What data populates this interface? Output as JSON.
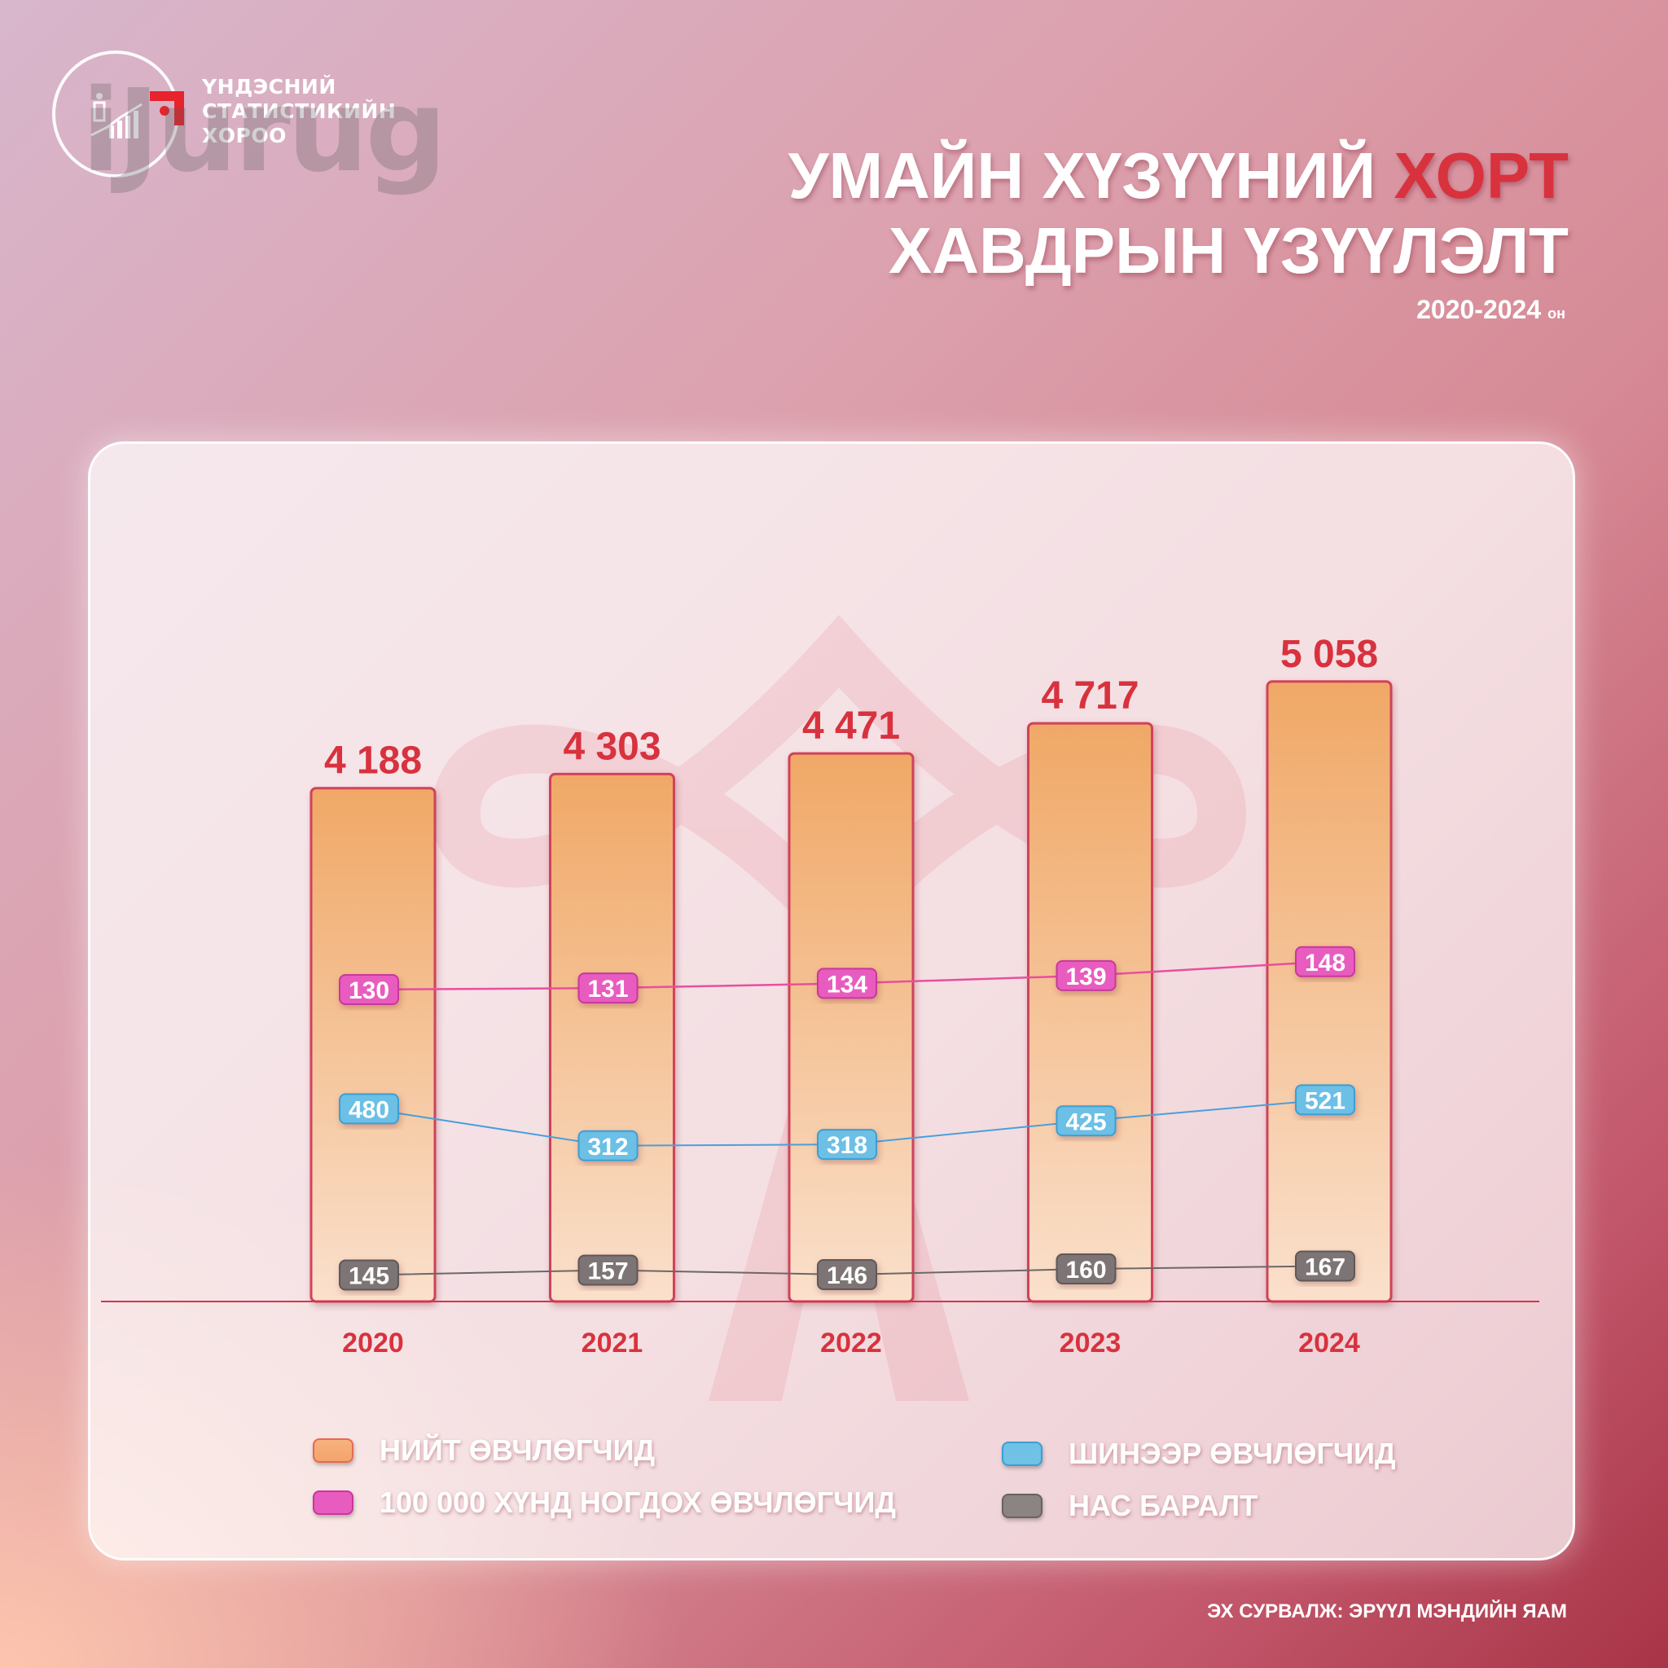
{
  "logo": {
    "lines": [
      "ҮНДЭСНИЙ",
      "СТАТИСТИКИЙН",
      "ХОРОО"
    ],
    "watermark": "iJurug"
  },
  "title": {
    "line1_main": "УМАЙН ХҮЗҮҮНИЙ ",
    "line1_accent": "ХОРТ",
    "line2": "ХАВДРЫН ҮЗҮҮЛЭЛТ",
    "period": "2020-2024",
    "period_unit": "он"
  },
  "chart_data": {
    "type": "bar",
    "categories": [
      "2020",
      "2021",
      "2022",
      "2023",
      "2024"
    ],
    "series": [
      {
        "name": "НИЙТ ӨВЧЛӨГЧИД",
        "kind": "bar",
        "values": [
          4188,
          4303,
          4471,
          4717,
          5058
        ],
        "labels": [
          "4 188",
          "4 303",
          "4 471",
          "4 717",
          "5 058"
        ],
        "color": "#f4a46c"
      },
      {
        "name": "100 000 ХҮНД НОГДОХ ӨВЧЛӨГЧИД",
        "kind": "line",
        "values": [
          130,
          131,
          134,
          139,
          148
        ],
        "labels": [
          "130",
          "131",
          "134",
          "139",
          "148"
        ],
        "color": "#e95cbf"
      },
      {
        "name": "ШИНЭЭР ӨВЧЛӨГЧИД",
        "kind": "line",
        "values": [
          480,
          312,
          318,
          425,
          521
        ],
        "labels": [
          "480",
          "312",
          "318",
          "425",
          "521"
        ],
        "color": "#5db3e2"
      },
      {
        "name": "НАС БАРАЛТ",
        "kind": "line",
        "values": [
          145,
          157,
          146,
          160,
          167
        ],
        "labels": [
          "145",
          "157",
          "146",
          "160",
          "167"
        ],
        "color": "#7d7575"
      }
    ],
    "legend_position": "bottom",
    "grid": false,
    "bar_ylim": [
      0,
      5600
    ]
  },
  "legend": {
    "total": "НИЙТ ӨВЧЛӨГЧИД",
    "rate": "100 000 ХҮНД НОГДОХ ӨВЧЛӨГЧИД",
    "new": "ШИНЭЭР ӨВЧЛӨГЧИД",
    "death": "НАС БАРАЛТ"
  },
  "source": "ЭХ СУРВАЛЖ: ЭРҮҮЛ МЭНДИЙН ЯАМ",
  "colors": {
    "accent": "#d8323e",
    "bar_border": "#d0425a",
    "bar_top": "#f0a866",
    "bar_bottom": "#fae0cc",
    "year_label": "#d8323e",
    "baseline": "#d8324e"
  }
}
